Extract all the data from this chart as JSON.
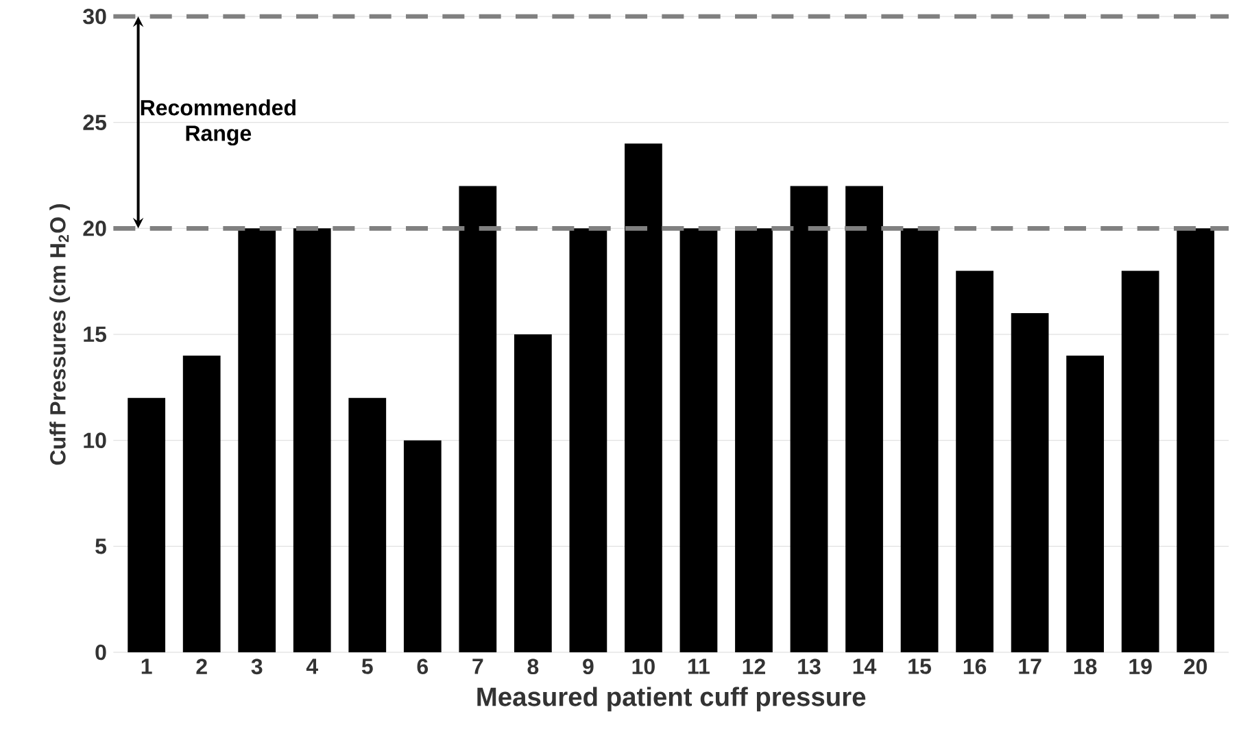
{
  "chart_data": {
    "type": "bar",
    "xlabel": "Measured patient cuff pressure",
    "ylabel": "Cuff Pressures (cm H$_{2}$O )",
    "categories": [
      "1",
      "2",
      "3",
      "4",
      "5",
      "6",
      "7",
      "8",
      "9",
      "10",
      "11",
      "12",
      "13",
      "14",
      "15",
      "16",
      "17",
      "18",
      "19",
      "20"
    ],
    "values": [
      12,
      14,
      20,
      20,
      12,
      10,
      22,
      15,
      20,
      24,
      20,
      20,
      22,
      22,
      20,
      18,
      16,
      14,
      18,
      20
    ],
    "color": "#000000",
    "ylim": [
      0,
      30
    ],
    "yticks": [
      0,
      5,
      10,
      15,
      20,
      25,
      30
    ],
    "grid": "y",
    "ref_lines": [
      {
        "axis": "y",
        "value": 20,
        "color": "#808080",
        "line_style": "dashed"
      },
      {
        "axis": "y",
        "value": 30,
        "color": "#808080",
        "line_style": "dashed"
      }
    ],
    "annotations": [
      "Recommended Range"
    ]
  }
}
